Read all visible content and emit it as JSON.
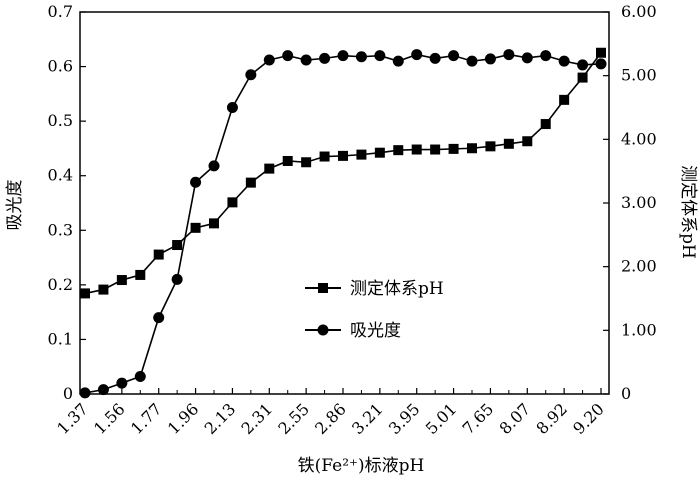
{
  "chart_data": {
    "type": "line",
    "xlabel": "铁(Fe²⁺)标液pH",
    "ylabel_left": "吸光度",
    "ylabel_right": "测定体系pH",
    "ylim_left": [
      0,
      0.7
    ],
    "yticks_left": [
      "0",
      "0.1",
      "0.2",
      "0.3",
      "0.4",
      "0.5",
      "0.6",
      "0.7"
    ],
    "ylim_right": [
      0,
      6
    ],
    "yticks_right": [
      "0",
      "1.00",
      "2.00",
      "3.00",
      "4.00",
      "5.00",
      "6.00"
    ],
    "x_tick_labels": [
      "1.37",
      "1.56",
      "1.77",
      "1.96",
      "2.13",
      "2.31",
      "2.55",
      "2.86",
      "3.21",
      "3.95",
      "5.01",
      "7.65",
      "8.07",
      "8.92",
      "9.20"
    ],
    "grid": false,
    "legend_position": "center",
    "series": [
      {
        "name": "测定体系pH",
        "marker": "square",
        "axis": "right",
        "values": [
          1.58,
          1.64,
          1.79,
          1.87,
          2.19,
          2.34,
          2.61,
          2.68,
          3.01,
          3.32,
          3.54,
          3.66,
          3.64,
          3.73,
          3.74,
          3.76,
          3.79,
          3.83,
          3.84,
          3.84,
          3.85,
          3.86,
          3.89,
          3.93,
          3.97,
          4.24,
          4.62,
          4.97,
          5.36
        ]
      },
      {
        "name": "吸光度",
        "marker": "circle",
        "axis": "left",
        "values": [
          0.002,
          0.008,
          0.02,
          0.032,
          0.14,
          0.21,
          0.388,
          0.418,
          0.525,
          0.585,
          0.612,
          0.62,
          0.612,
          0.615,
          0.62,
          0.618,
          0.62,
          0.61,
          0.622,
          0.615,
          0.62,
          0.61,
          0.614,
          0.622,
          0.616,
          0.62,
          0.61,
          0.603,
          0.605
        ]
      }
    ]
  }
}
